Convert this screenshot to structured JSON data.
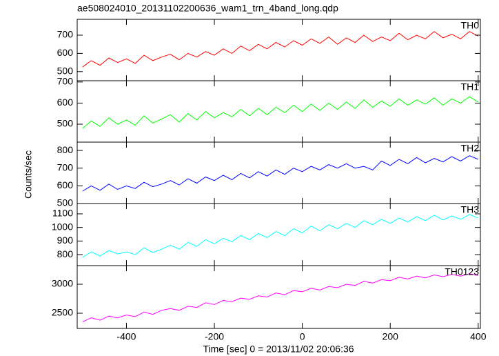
{
  "figure": {
    "title": "ae508024010_20131102200636_wam1_trn_4band_long.qdp",
    "y_label": "Counts/sec",
    "x_label": "Time [sec] 0 = 2013/11/02 20:06:36"
  },
  "chart_data": [
    {
      "type": "line",
      "label": "TH0",
      "color": "#ff0000",
      "ylim": [
        450,
        787
      ],
      "yticks": [
        500,
        600,
        700
      ],
      "xlim": [
        -512,
        405
      ],
      "x": [
        -500,
        -480,
        -460,
        -440,
        -420,
        -400,
        -380,
        -360,
        -340,
        -320,
        -300,
        -280,
        -260,
        -240,
        -220,
        -200,
        -180,
        -160,
        -140,
        -120,
        -100,
        -80,
        -60,
        -40,
        -20,
        0,
        20,
        40,
        60,
        80,
        100,
        120,
        140,
        160,
        180,
        200,
        220,
        240,
        260,
        280,
        300,
        320,
        340,
        360,
        380,
        400
      ],
      "values": [
        525,
        560,
        535,
        575,
        550,
        570,
        545,
        590,
        560,
        580,
        595,
        565,
        600,
        580,
        610,
        590,
        625,
        600,
        640,
        615,
        650,
        625,
        660,
        635,
        670,
        645,
        680,
        655,
        690,
        650,
        685,
        660,
        700,
        665,
        690,
        670,
        710,
        675,
        700,
        680,
        720,
        685,
        705,
        680,
        720,
        695
      ]
    },
    {
      "type": "line",
      "label": "TH1",
      "color": "#00ff00",
      "ylim": [
        415,
        706
      ],
      "yticks": [
        500,
        600,
        700
      ],
      "xlim": [
        -512,
        405
      ],
      "x": [
        -500,
        -480,
        -460,
        -440,
        -420,
        -400,
        -380,
        -360,
        -340,
        -320,
        -300,
        -280,
        -260,
        -240,
        -220,
        -200,
        -180,
        -160,
        -140,
        -120,
        -100,
        -80,
        -60,
        -40,
        -20,
        0,
        20,
        40,
        60,
        80,
        100,
        120,
        140,
        160,
        180,
        200,
        220,
        240,
        260,
        280,
        300,
        320,
        340,
        360,
        380,
        400
      ],
      "values": [
        480,
        515,
        490,
        530,
        500,
        520,
        495,
        540,
        505,
        525,
        545,
        510,
        550,
        520,
        560,
        530,
        555,
        535,
        570,
        540,
        575,
        545,
        580,
        555,
        590,
        560,
        595,
        565,
        600,
        570,
        605,
        575,
        615,
        580,
        610,
        585,
        620,
        590,
        615,
        595,
        625,
        590,
        620,
        600,
        630,
        605
      ]
    },
    {
      "type": "line",
      "label": "TH2",
      "color": "#0000ff",
      "ylim": [
        500,
        847
      ],
      "yticks": [
        500,
        600,
        700,
        800
      ],
      "xlim": [
        -512,
        405
      ],
      "x": [
        -500,
        -480,
        -460,
        -440,
        -420,
        -400,
        -380,
        -360,
        -340,
        -320,
        -300,
        -280,
        -260,
        -240,
        -220,
        -200,
        -180,
        -160,
        -140,
        -120,
        -100,
        -80,
        -60,
        -40,
        -20,
        0,
        20,
        40,
        60,
        80,
        100,
        120,
        140,
        160,
        180,
        200,
        220,
        240,
        260,
        280,
        300,
        320,
        340,
        360,
        380,
        400
      ],
      "values": [
        570,
        600,
        575,
        610,
        580,
        600,
        585,
        620,
        595,
        610,
        630,
        605,
        640,
        615,
        650,
        630,
        660,
        635,
        670,
        645,
        680,
        655,
        690,
        665,
        700,
        680,
        710,
        690,
        720,
        700,
        725,
        700,
        710,
        690,
        740,
        715,
        750,
        725,
        760,
        730,
        755,
        735,
        765,
        740,
        770,
        750
      ]
    },
    {
      "type": "line",
      "label": "TH3",
      "color": "#00ffff",
      "ylim": [
        719,
        1176
      ],
      "yticks": [
        800,
        900,
        1000,
        1100
      ],
      "xlim": [
        -512,
        405
      ],
      "x": [
        -500,
        -480,
        -460,
        -440,
        -420,
        -400,
        -380,
        -360,
        -340,
        -320,
        -300,
        -280,
        -260,
        -240,
        -220,
        -200,
        -180,
        -160,
        -140,
        -120,
        -100,
        -80,
        -60,
        -40,
        -20,
        0,
        20,
        40,
        60,
        80,
        100,
        120,
        140,
        160,
        180,
        200,
        220,
        240,
        260,
        280,
        300,
        320,
        340,
        360,
        380,
        400
      ],
      "values": [
        780,
        820,
        790,
        830,
        805,
        820,
        800,
        850,
        815,
        840,
        870,
        840,
        890,
        860,
        910,
        880,
        920,
        895,
        940,
        910,
        955,
        925,
        970,
        940,
        990,
        960,
        1010,
        975,
        1020,
        990,
        1030,
        1000,
        1050,
        1020,
        1060,
        1030,
        1070,
        1040,
        1080,
        1050,
        1090,
        1055,
        1085,
        1060,
        1095,
        1070
      ]
    },
    {
      "type": "line",
      "label": "TH0123",
      "color": "#ff00ff",
      "ylim": [
        2238,
        3321
      ],
      "yticks": [
        2500,
        3000
      ],
      "xlim": [
        -512,
        405
      ],
      "xticks": [
        -400,
        -200,
        0,
        200,
        400
      ],
      "x": [
        -500,
        -480,
        -460,
        -440,
        -420,
        -400,
        -380,
        -360,
        -340,
        -320,
        -300,
        -280,
        -260,
        -240,
        -220,
        -200,
        -180,
        -160,
        -140,
        -120,
        -100,
        -80,
        -60,
        -40,
        -20,
        0,
        20,
        40,
        60,
        80,
        100,
        120,
        140,
        160,
        180,
        200,
        220,
        240,
        260,
        280,
        300,
        320,
        340,
        360,
        380,
        400
      ],
      "values": [
        2350,
        2420,
        2380,
        2450,
        2420,
        2470,
        2440,
        2520,
        2480,
        2550,
        2580,
        2550,
        2620,
        2600,
        2680,
        2650,
        2720,
        2700,
        2760,
        2740,
        2800,
        2780,
        2850,
        2820,
        2890,
        2870,
        2930,
        2900,
        2960,
        2940,
        3000,
        2980,
        3050,
        3020,
        3080,
        3060,
        3120,
        3090,
        3140,
        3110,
        3160,
        3130,
        3170,
        3140,
        3180,
        3150
      ]
    }
  ]
}
